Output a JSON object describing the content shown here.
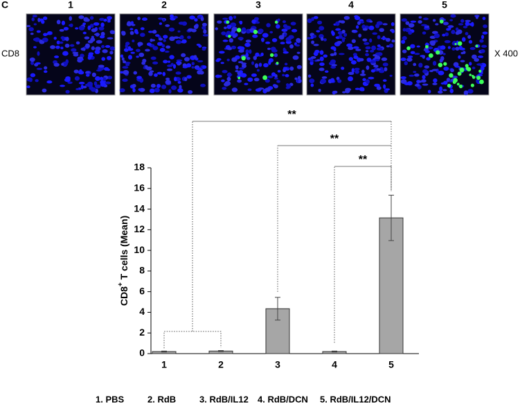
{
  "panel_label": "C",
  "images": {
    "labels": [
      "1",
      "2",
      "3",
      "4",
      "5"
    ],
    "row_label": "CD8",
    "magnification": "X 400"
  },
  "chart_data": {
    "type": "bar",
    "ylabel": {
      "base": "CD8",
      "sup": "+",
      "rest": " T cells (Mean)"
    },
    "categories": [
      "1",
      "2",
      "3",
      "4",
      "5"
    ],
    "values": [
      0.2,
      0.25,
      4.35,
      0.2,
      13.15
    ],
    "errors": [
      0.05,
      0.05,
      1.1,
      0.05,
      2.2
    ],
    "color": "#a6a6a6",
    "ylim": [
      0,
      18
    ],
    "yticks": [
      0,
      2,
      4,
      6,
      8,
      10,
      12,
      14,
      16,
      18
    ],
    "annotations": [
      "**",
      "**",
      "**"
    ],
    "legend": [
      "1. PBS",
      "2. RdB",
      "3. RdB/IL12",
      "4. RdB/DCN",
      "5. RdB/IL12/DCN"
    ]
  }
}
